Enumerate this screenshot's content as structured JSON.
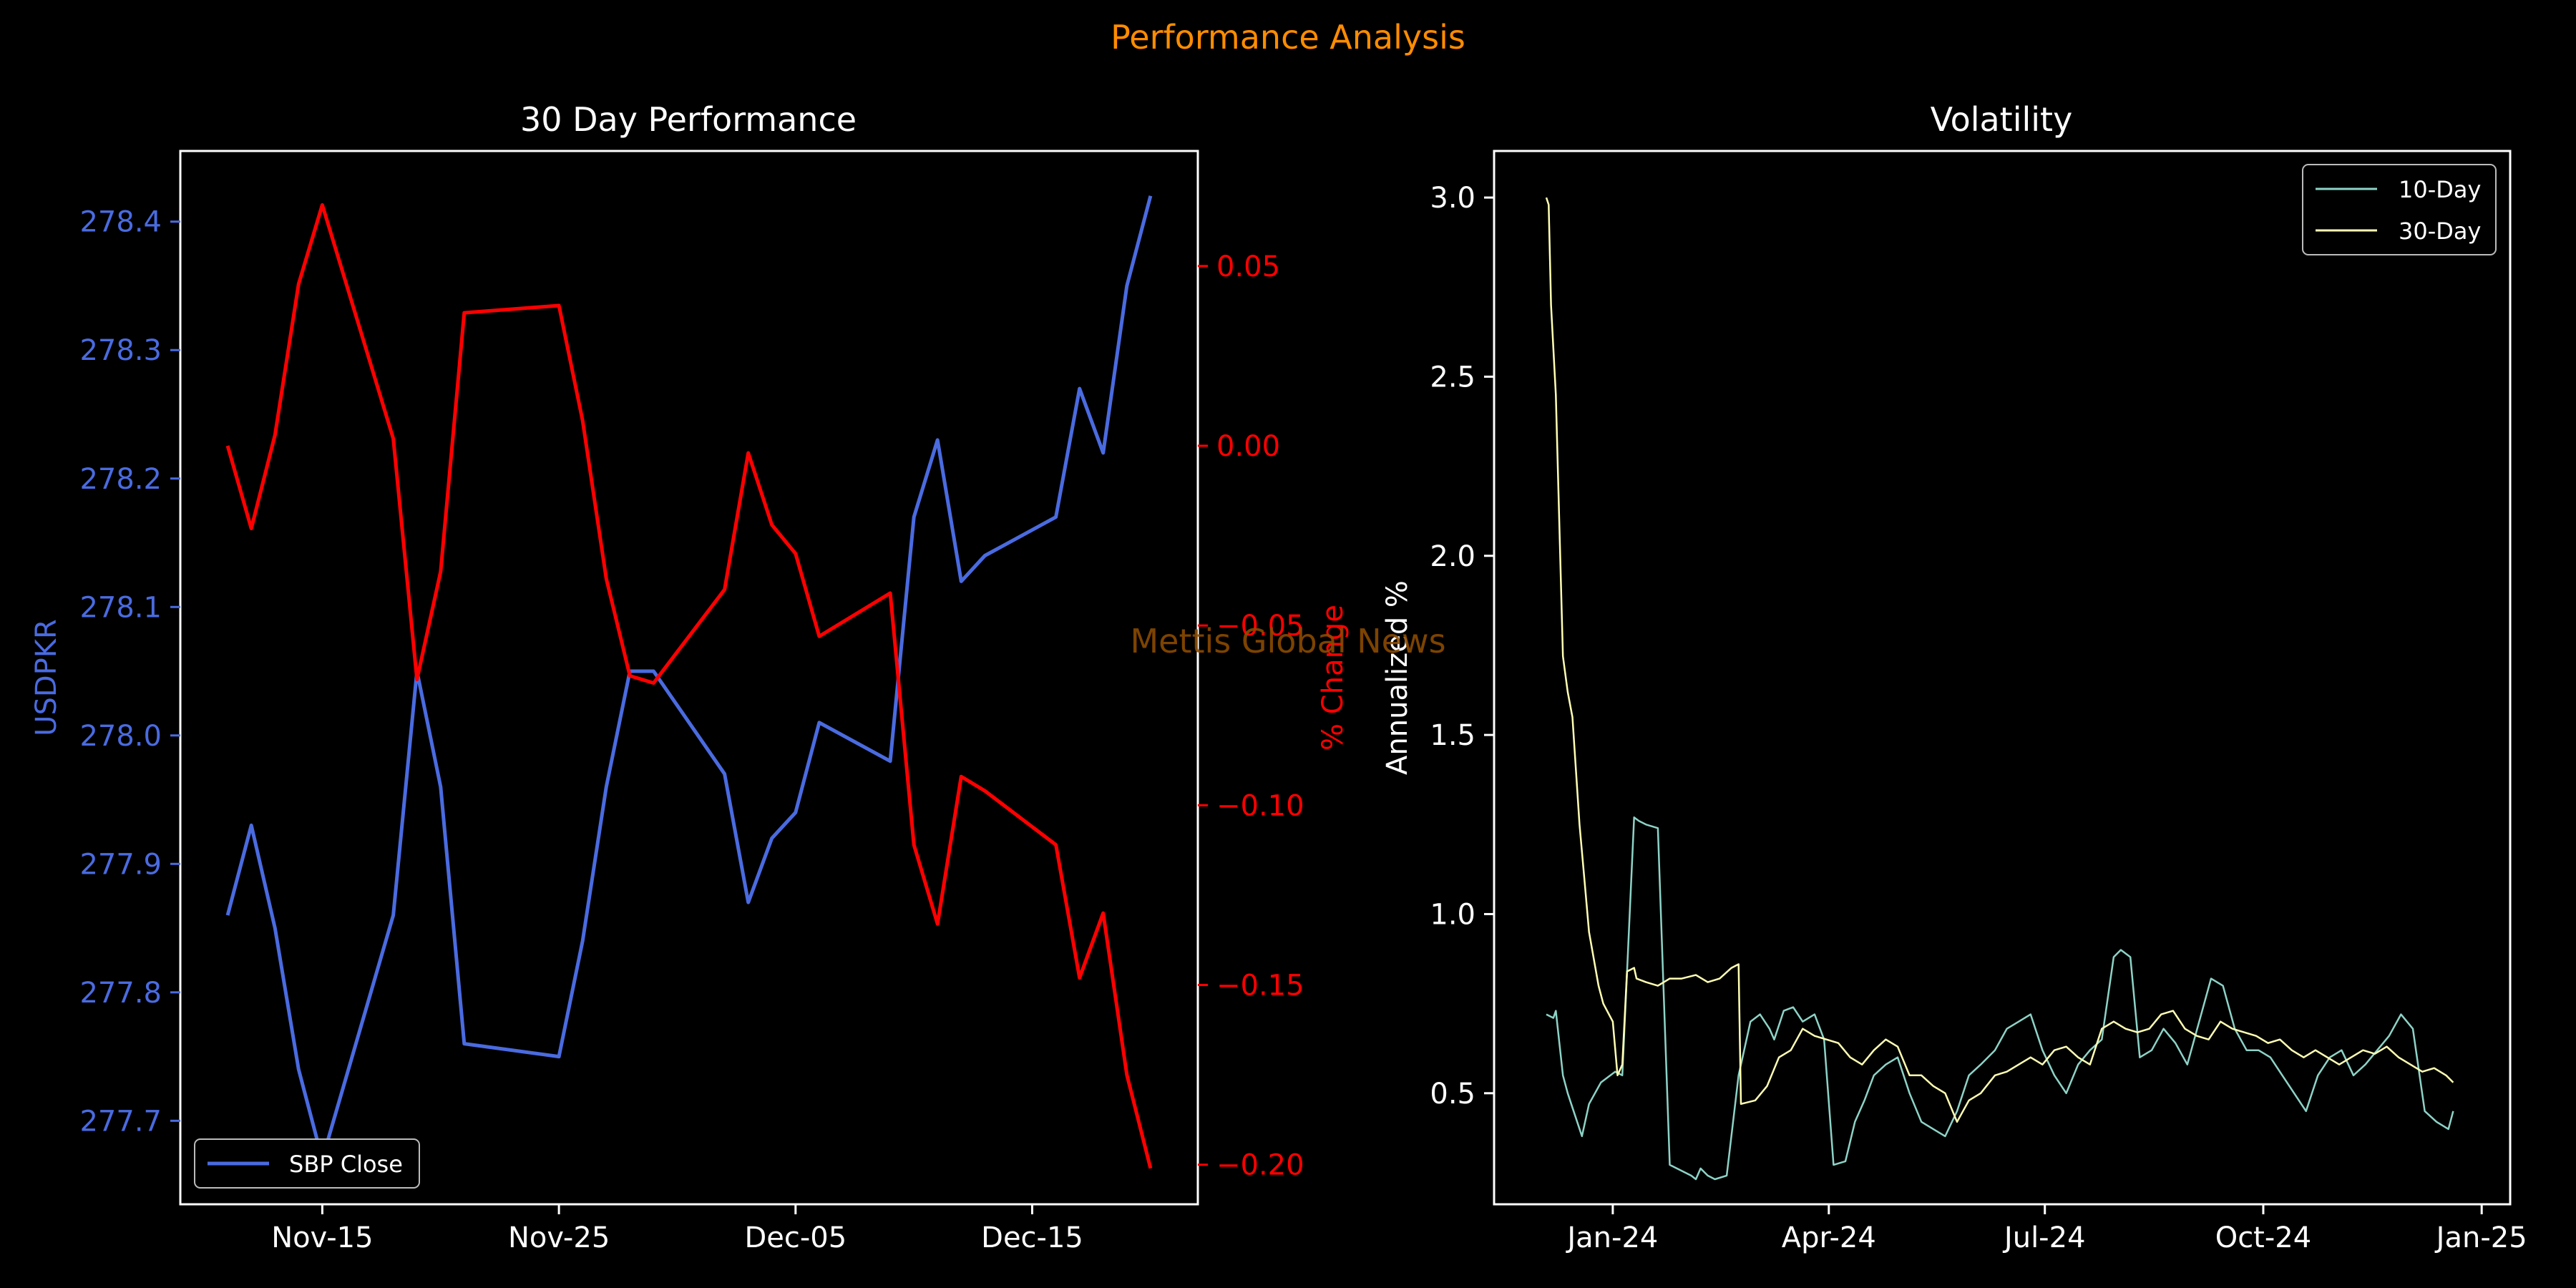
{
  "suptitle": "Performance Analysis",
  "watermark": "Mettis Global News",
  "colors": {
    "background": "#000000",
    "suptitle": "#ff8c00",
    "axes": "#ffffff",
    "usd": "#4a6be0",
    "pct": "#ff0000",
    "vol10": "#8dd3c7",
    "vol30": "#ffffb3",
    "watermark": "#8b4a00"
  },
  "chart_data": [
    {
      "type": "line",
      "title": "30 Day Performance",
      "ylabel": "USDPKR",
      "y2label": "% Change",
      "xticks": [
        "Nov-15",
        "Nov-25",
        "Dec-05",
        "Dec-15"
      ],
      "xtick_dates": [
        "2024-11-15",
        "2024-11-25",
        "2024-12-05",
        "2024-12-15"
      ],
      "xlim": [
        "2024-11-09",
        "2024-12-22"
      ],
      "ylim": [
        277.635,
        278.455
      ],
      "yticks": [
        "277.7",
        "277.8",
        "277.9",
        "278.0",
        "278.1",
        "278.2",
        "278.3",
        "278.4"
      ],
      "y2lim": [
        -0.211,
        0.082
      ],
      "y2ticks": [
        "0.05",
        "0.00",
        "−0.05",
        "−0.10",
        "−0.15",
        "−0.20"
      ],
      "legend": {
        "label": "SBP Close",
        "position": "lower-left"
      },
      "series": [
        {
          "name": "SBP Close",
          "axis": "left",
          "x": [
            "2024-11-11",
            "2024-11-12",
            "2024-11-13",
            "2024-11-14",
            "2024-11-15",
            "2024-11-18",
            "2024-11-19",
            "2024-11-20",
            "2024-11-21",
            "2024-11-25",
            "2024-11-26",
            "2024-11-27",
            "2024-11-28",
            "2024-11-29",
            "2024-12-02",
            "2024-12-03",
            "2024-12-04",
            "2024-12-05",
            "2024-12-06",
            "2024-12-09",
            "2024-12-10",
            "2024-12-11",
            "2024-12-12",
            "2024-12-13",
            "2024-12-16",
            "2024-12-17",
            "2024-12-18",
            "2024-12-19",
            "2024-12-20"
          ],
          "y": [
            277.86,
            277.93,
            277.85,
            277.74,
            277.67,
            277.86,
            278.05,
            277.96,
            277.76,
            277.75,
            277.84,
            277.96,
            278.05,
            278.05,
            277.97,
            277.87,
            277.92,
            277.94,
            278.01,
            277.98,
            278.17,
            278.23,
            278.12,
            278.14,
            278.17,
            278.27,
            278.22,
            278.35,
            278.42
          ]
        },
        {
          "name": "% Change",
          "axis": "right",
          "x": [
            "2024-11-11",
            "2024-11-12",
            "2024-11-13",
            "2024-11-14",
            "2024-11-15",
            "2024-11-18",
            "2024-11-19",
            "2024-11-20",
            "2024-11-21",
            "2024-11-25",
            "2024-11-26",
            "2024-11-27",
            "2024-11-28",
            "2024-11-29",
            "2024-12-02",
            "2024-12-03",
            "2024-12-04",
            "2024-12-05",
            "2024-12-06",
            "2024-12-09",
            "2024-12-10",
            "2024-12-11",
            "2024-12-12",
            "2024-12-13",
            "2024-12-16",
            "2024-12-17",
            "2024-12-18",
            "2024-12-19",
            "2024-12-20"
          ],
          "y": [
            0.0,
            -0.023,
            0.003,
            0.045,
            0.067,
            0.002,
            -0.065,
            -0.035,
            0.037,
            0.039,
            0.007,
            -0.037,
            -0.064,
            -0.066,
            -0.04,
            -0.002,
            -0.022,
            -0.03,
            -0.053,
            -0.041,
            -0.111,
            -0.133,
            -0.092,
            -0.096,
            -0.111,
            -0.148,
            -0.13,
            -0.175,
            -0.201
          ]
        }
      ]
    },
    {
      "type": "line",
      "title": "Volatility",
      "ylabel": "Annualized %",
      "xticks": [
        "Jan-24",
        "Apr-24",
        "Jul-24",
        "Oct-24",
        "Jan-25"
      ],
      "xtick_dates": [
        "2024-01-01",
        "2024-04-01",
        "2024-07-01",
        "2024-10-01",
        "2025-01-01"
      ],
      "xlim": [
        "2023-11-12",
        "2025-01-13"
      ],
      "ylim": [
        0.19,
        3.13
      ],
      "yticks": [
        "0.5",
        "1.0",
        "1.5",
        "2.0",
        "2.5",
        "3.0"
      ],
      "legend": {
        "position": "top-right"
      },
      "series": [
        {
          "name": "10-Day",
          "x": [
            "2023-12-04",
            "2023-12-07",
            "2023-12-08",
            "2023-12-11",
            "2023-12-13",
            "2023-12-15",
            "2023-12-19",
            "2023-12-22",
            "2023-12-27",
            "2024-01-02",
            "2024-01-05",
            "2024-01-10",
            "2024-01-12",
            "2024-01-15",
            "2024-01-20",
            "2024-01-25",
            "2024-01-31",
            "2024-02-03",
            "2024-02-05",
            "2024-02-07",
            "2024-02-10",
            "2024-02-13",
            "2024-02-18",
            "2024-02-23",
            "2024-02-28",
            "2024-03-03",
            "2024-03-07",
            "2024-03-09",
            "2024-03-13",
            "2024-03-17",
            "2024-03-21",
            "2024-03-26",
            "2024-03-30",
            "2024-04-03",
            "2024-04-08",
            "2024-04-12",
            "2024-04-16",
            "2024-04-20",
            "2024-04-25",
            "2024-04-30",
            "2024-05-05",
            "2024-05-10",
            "2024-05-15",
            "2024-05-20",
            "2024-05-25",
            "2024-05-30",
            "2024-06-04",
            "2024-06-10",
            "2024-06-15",
            "2024-06-20",
            "2024-06-25",
            "2024-06-30",
            "2024-07-05",
            "2024-07-10",
            "2024-07-15",
            "2024-07-20",
            "2024-07-25",
            "2024-07-30",
            "2024-08-02",
            "2024-08-06",
            "2024-08-10",
            "2024-08-15",
            "2024-08-20",
            "2024-08-25",
            "2024-08-30",
            "2024-09-04",
            "2024-09-09",
            "2024-09-14",
            "2024-09-19",
            "2024-09-24",
            "2024-09-29",
            "2024-10-04",
            "2024-10-09",
            "2024-10-14",
            "2024-10-19",
            "2024-10-24",
            "2024-10-29",
            "2024-11-03",
            "2024-11-08",
            "2024-11-13",
            "2024-11-18",
            "2024-11-23",
            "2024-11-28",
            "2024-12-03",
            "2024-12-08",
            "2024-12-13",
            "2024-12-18",
            "2024-12-20"
          ],
          "y": [
            0.72,
            0.71,
            0.73,
            0.55,
            0.5,
            0.46,
            0.38,
            0.47,
            0.53,
            0.56,
            0.55,
            1.27,
            1.26,
            1.25,
            1.24,
            0.3,
            0.28,
            0.27,
            0.26,
            0.29,
            0.27,
            0.26,
            0.27,
            0.55,
            0.7,
            0.72,
            0.68,
            0.65,
            0.73,
            0.74,
            0.7,
            0.72,
            0.65,
            0.3,
            0.31,
            0.42,
            0.48,
            0.55,
            0.58,
            0.6,
            0.5,
            0.42,
            0.4,
            0.38,
            0.45,
            0.55,
            0.58,
            0.62,
            0.68,
            0.7,
            0.72,
            0.62,
            0.55,
            0.5,
            0.58,
            0.62,
            0.65,
            0.88,
            0.9,
            0.88,
            0.6,
            0.62,
            0.68,
            0.64,
            0.58,
            0.7,
            0.82,
            0.8,
            0.68,
            0.62,
            0.62,
            0.6,
            0.55,
            0.5,
            0.45,
            0.55,
            0.6,
            0.62,
            0.55,
            0.58,
            0.62,
            0.66,
            0.72,
            0.68,
            0.45,
            0.42,
            0.4,
            0.45
          ]
        },
        {
          "name": "30-Day",
          "x": [
            "2023-12-04",
            "2023-12-05",
            "2023-12-06",
            "2023-12-08",
            "2023-12-11",
            "2023-12-13",
            "2023-12-15",
            "2023-12-18",
            "2023-12-20",
            "2023-12-22",
            "2023-12-26",
            "2023-12-28",
            "2024-01-01",
            "2024-01-03",
            "2024-01-05",
            "2024-01-07",
            "2024-01-10",
            "2024-01-11",
            "2024-01-15",
            "2024-01-20",
            "2024-01-25",
            "2024-01-30",
            "2024-02-05",
            "2024-02-10",
            "2024-02-15",
            "2024-02-20",
            "2024-02-23",
            "2024-02-24",
            "2024-03-01",
            "2024-03-06",
            "2024-03-11",
            "2024-03-16",
            "2024-03-21",
            "2024-03-26",
            "2024-03-31",
            "2024-04-05",
            "2024-04-10",
            "2024-04-15",
            "2024-04-20",
            "2024-04-25",
            "2024-04-30",
            "2024-05-05",
            "2024-05-10",
            "2024-05-15",
            "2024-05-20",
            "2024-05-25",
            "2024-05-30",
            "2024-06-04",
            "2024-06-10",
            "2024-06-15",
            "2024-06-20",
            "2024-06-25",
            "2024-06-30",
            "2024-07-05",
            "2024-07-10",
            "2024-07-15",
            "2024-07-20",
            "2024-07-25",
            "2024-07-30",
            "2024-08-04",
            "2024-08-09",
            "2024-08-14",
            "2024-08-19",
            "2024-08-24",
            "2024-08-29",
            "2024-09-03",
            "2024-09-08",
            "2024-09-13",
            "2024-09-18",
            "2024-09-23",
            "2024-09-28",
            "2024-10-03",
            "2024-10-08",
            "2024-10-13",
            "2024-10-18",
            "2024-10-23",
            "2024-10-28",
            "2024-11-02",
            "2024-11-07",
            "2024-11-12",
            "2024-11-17",
            "2024-11-22",
            "2024-11-27",
            "2024-12-02",
            "2024-12-07",
            "2024-12-12",
            "2024-12-17",
            "2024-12-20"
          ],
          "y": [
            3.0,
            2.98,
            2.7,
            2.45,
            1.72,
            1.62,
            1.55,
            1.25,
            1.1,
            0.95,
            0.8,
            0.75,
            0.7,
            0.55,
            0.58,
            0.84,
            0.85,
            0.82,
            0.81,
            0.8,
            0.82,
            0.82,
            0.83,
            0.81,
            0.82,
            0.85,
            0.86,
            0.47,
            0.48,
            0.52,
            0.6,
            0.62,
            0.68,
            0.66,
            0.65,
            0.64,
            0.6,
            0.58,
            0.62,
            0.65,
            0.63,
            0.55,
            0.55,
            0.52,
            0.5,
            0.42,
            0.48,
            0.5,
            0.55,
            0.56,
            0.58,
            0.6,
            0.58,
            0.62,
            0.63,
            0.6,
            0.58,
            0.68,
            0.7,
            0.68,
            0.67,
            0.68,
            0.72,
            0.73,
            0.68,
            0.66,
            0.65,
            0.7,
            0.68,
            0.67,
            0.66,
            0.64,
            0.65,
            0.62,
            0.6,
            0.62,
            0.6,
            0.58,
            0.6,
            0.62,
            0.61,
            0.63,
            0.6,
            0.58,
            0.56,
            0.57,
            0.55,
            0.53
          ]
        }
      ]
    }
  ]
}
